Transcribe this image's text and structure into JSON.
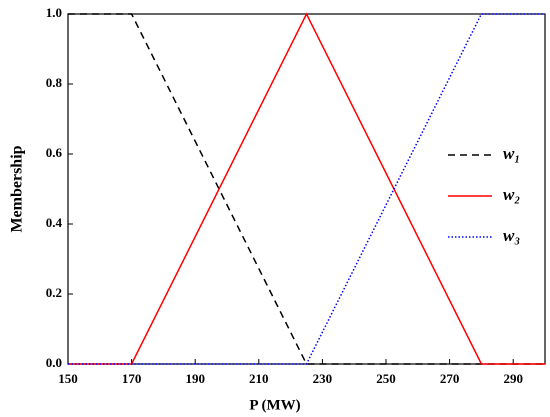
{
  "chart_data": {
    "type": "line",
    "x_label": "P (MW)",
    "y_label": "Membership",
    "x": [
      150,
      170,
      225,
      280,
      300
    ],
    "series": [
      {
        "name": "w₁",
        "color": "#000000",
        "style": "dashed",
        "values": [
          1,
          1,
          0,
          0,
          0
        ]
      },
      {
        "name": "w₂",
        "color": "#ff0000",
        "style": "solid",
        "values": [
          0,
          0,
          1,
          0,
          0
        ]
      },
      {
        "name": "w₃",
        "color": "#0000ff",
        "style": "dotted",
        "values": [
          0,
          0,
          0,
          1,
          1
        ]
      }
    ],
    "xlim": [
      150,
      300
    ],
    "xticks": [
      150,
      170,
      190,
      210,
      230,
      250,
      270,
      290
    ],
    "ylim": [
      0,
      1
    ],
    "yticks": [
      {
        "value": 0,
        "label": "0.0"
      },
      0.2,
      0.4,
      0.6,
      0.8,
      {
        "value": 1,
        "label": "1.0"
      }
    ],
    "grid": false,
    "legend": "right"
  }
}
